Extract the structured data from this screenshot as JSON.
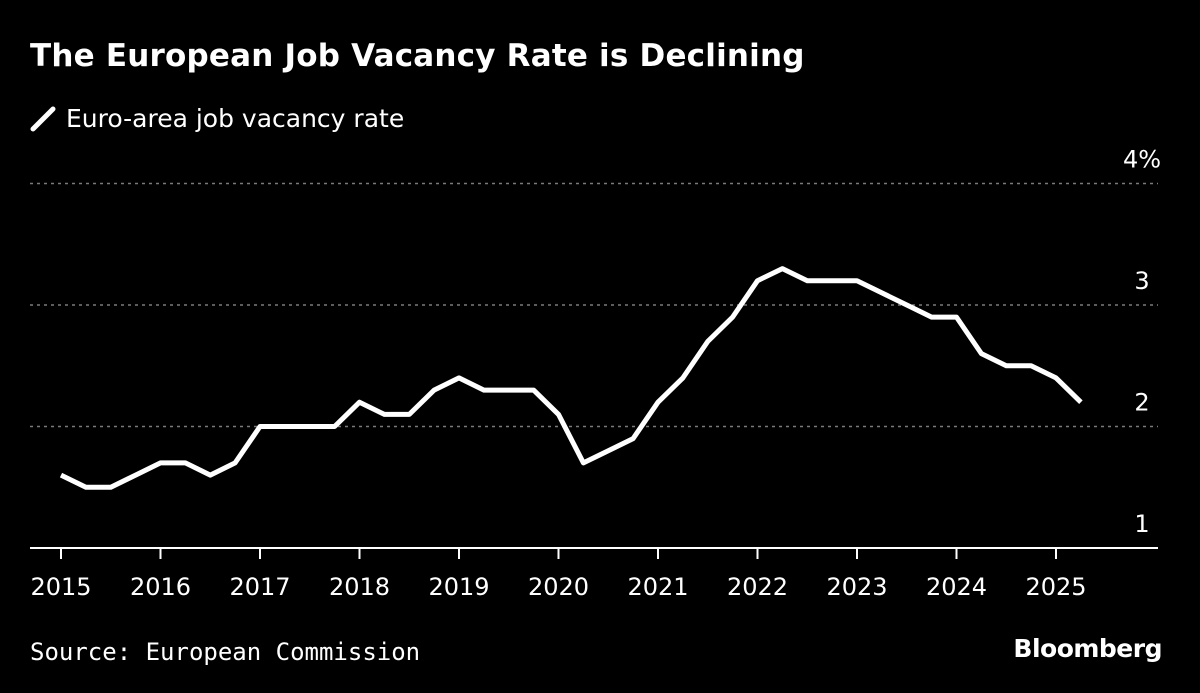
{
  "header": {
    "title": "The European Job Vacancy Rate is Declining"
  },
  "legend": {
    "label": "Euro-area job vacancy rate"
  },
  "footer": {
    "source": "Source: European Commission",
    "brand": "Bloomberg"
  },
  "colors": {
    "background": "#000000",
    "line": "#ffffff",
    "grid": "#7a7a7a",
    "text": "#ffffff"
  },
  "chart_data": {
    "type": "line",
    "title": "The European Job Vacancy Rate is Declining",
    "xlabel": "",
    "ylabel": "",
    "x_tick_labels": [
      "2015",
      "2016",
      "2017",
      "2018",
      "2019",
      "2020",
      "2021",
      "2022",
      "2023",
      "2024",
      "2025"
    ],
    "y_tick_labels": [
      "1",
      "2",
      "3",
      "4%"
    ],
    "y_ticks": [
      1,
      2,
      3,
      4
    ],
    "xlim": [
      2015,
      2026
    ],
    "ylim": [
      1,
      4
    ],
    "grid": "horizontal dotted",
    "legend_position": "top-left",
    "series": [
      {
        "name": "Euro-area job vacancy rate",
        "x": [
          2015.0,
          2015.25,
          2015.5,
          2015.75,
          2016.0,
          2016.25,
          2016.5,
          2016.75,
          2017.0,
          2017.25,
          2017.5,
          2017.75,
          2018.0,
          2018.25,
          2018.5,
          2018.75,
          2019.0,
          2019.25,
          2019.5,
          2019.75,
          2020.0,
          2020.25,
          2020.5,
          2020.75,
          2021.0,
          2021.25,
          2021.5,
          2021.75,
          2022.0,
          2022.25,
          2022.5,
          2022.75,
          2023.0,
          2023.25,
          2023.5,
          2023.75,
          2024.0,
          2024.25,
          2024.5,
          2024.75,
          2025.0,
          2025.25
        ],
        "values": [
          1.6,
          1.5,
          1.5,
          1.6,
          1.7,
          1.7,
          1.6,
          1.7,
          2.0,
          2.0,
          2.0,
          2.0,
          2.2,
          2.1,
          2.1,
          2.3,
          2.4,
          2.3,
          2.3,
          2.3,
          2.1,
          1.7,
          1.8,
          1.9,
          2.2,
          2.4,
          2.7,
          2.9,
          3.2,
          3.3,
          3.2,
          3.2,
          3.2,
          3.1,
          3.0,
          2.9,
          2.9,
          2.6,
          2.5,
          2.5,
          2.4,
          2.2
        ]
      }
    ]
  }
}
